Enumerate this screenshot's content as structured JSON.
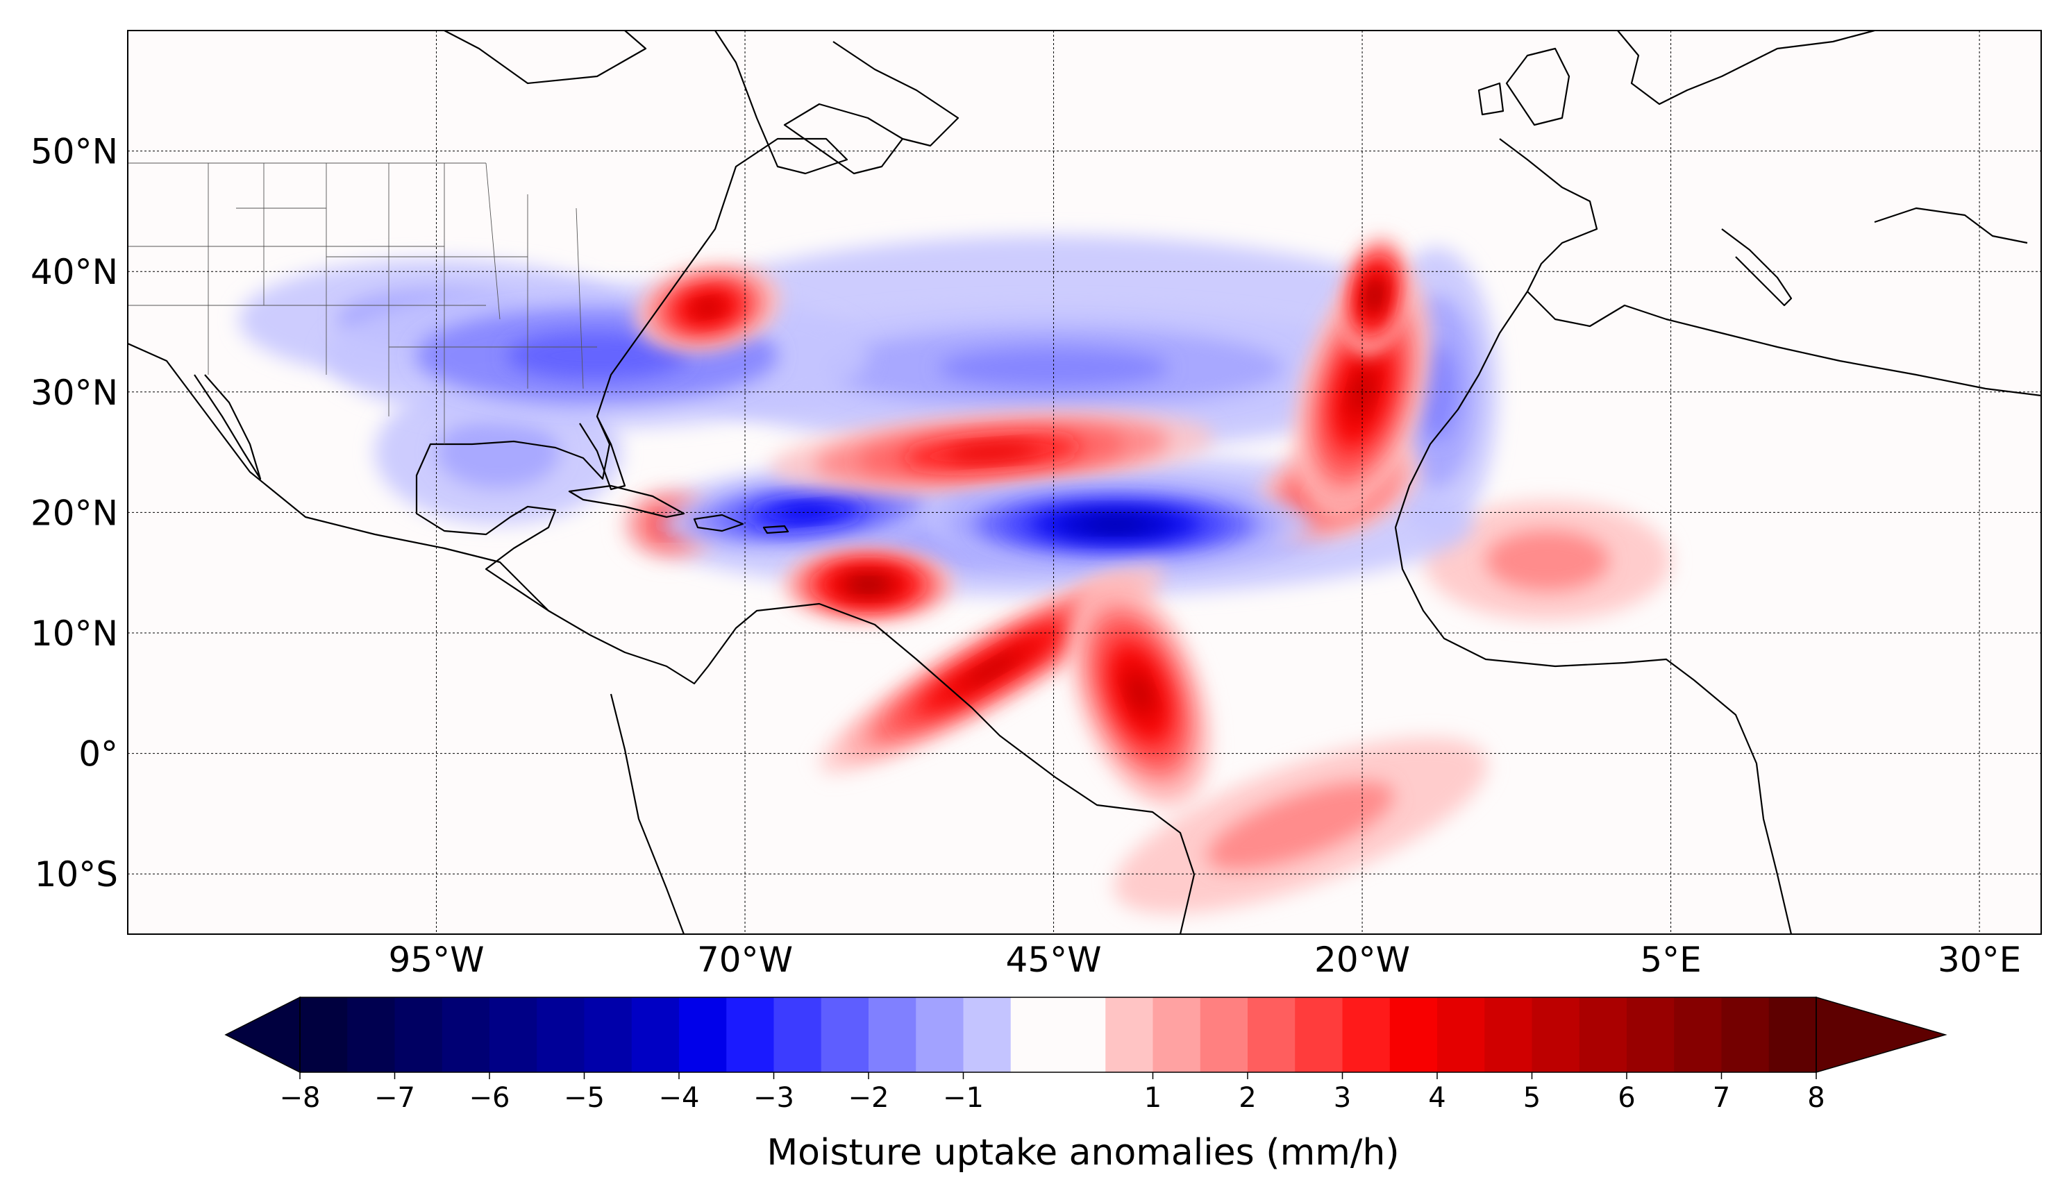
{
  "figure": {
    "colorbar_label": "Moisture uptake anomalies (mm/h)"
  },
  "map": {
    "projection": "PlateCarree",
    "lon_range": [
      -120,
      35
    ],
    "lat_range": [
      -15,
      60
    ],
    "lon_ticks": [
      {
        "value": -95,
        "label": "95°W"
      },
      {
        "value": -70,
        "label": "70°W"
      },
      {
        "value": -45,
        "label": "45°W"
      },
      {
        "value": -20,
        "label": "20°W"
      },
      {
        "value": 5,
        "label": "5°E"
      },
      {
        "value": 30,
        "label": "30°E"
      }
    ],
    "lat_ticks": [
      {
        "value": 50,
        "label": "50°N"
      },
      {
        "value": 40,
        "label": "40°N"
      },
      {
        "value": 30,
        "label": "30°N"
      },
      {
        "value": 20,
        "label": "20°N"
      },
      {
        "value": 10,
        "label": "10°N"
      },
      {
        "value": 0,
        "label": "0°"
      },
      {
        "value": -10,
        "label": "10°S"
      }
    ],
    "gridlines": true
  },
  "chart_data": {
    "type": "heatmap",
    "title": "",
    "colorbar_label": "Moisture uptake anomalies (mm/h)",
    "units": "mm/h",
    "vmin": -8,
    "vmax": 8,
    "level_step": 0.5,
    "extend": "both",
    "colorbar_ticks": [
      {
        "value": -8,
        "label": "−8"
      },
      {
        "value": -7,
        "label": "−7"
      },
      {
        "value": -6,
        "label": "−6"
      },
      {
        "value": -5,
        "label": "−5"
      },
      {
        "value": -4,
        "label": "−4"
      },
      {
        "value": -3,
        "label": "−3"
      },
      {
        "value": -2,
        "label": "−2"
      },
      {
        "value": -1,
        "label": "−1"
      },
      {
        "value": 1,
        "label": "1"
      },
      {
        "value": 2,
        "label": "2"
      },
      {
        "value": 3,
        "label": "3"
      },
      {
        "value": 4,
        "label": "4"
      },
      {
        "value": 5,
        "label": "5"
      },
      {
        "value": 6,
        "label": "6"
      },
      {
        "value": 7,
        "label": "7"
      },
      {
        "value": 8,
        "label": "8"
      }
    ],
    "levels": [
      {
        "range": [
          -8,
          -7.5
        ],
        "color": "#00003f"
      },
      {
        "range": [
          -7.5,
          -7
        ],
        "color": "#000050"
      },
      {
        "range": [
          -7,
          -6.5
        ],
        "color": "#000062"
      },
      {
        "range": [
          -6.5,
          -6
        ],
        "color": "#000074"
      },
      {
        "range": [
          -6,
          -5.5
        ],
        "color": "#000086"
      },
      {
        "range": [
          -5.5,
          -5
        ],
        "color": "#000098"
      },
      {
        "range": [
          -5,
          -4.5
        ],
        "color": "#0000aa"
      },
      {
        "range": [
          -4.5,
          -4
        ],
        "color": "#0000c4"
      },
      {
        "range": [
          -4,
          -3.5
        ],
        "color": "#0000ea"
      },
      {
        "range": [
          -3.5,
          -3
        ],
        "color": "#1a1aff"
      },
      {
        "range": [
          -3,
          -2.5
        ],
        "color": "#3c3cff"
      },
      {
        "range": [
          -2.5,
          -2
        ],
        "color": "#5e5eff"
      },
      {
        "range": [
          -2,
          -1.5
        ],
        "color": "#8080ff"
      },
      {
        "range": [
          -1.5,
          -1
        ],
        "color": "#a2a2ff"
      },
      {
        "range": [
          -1,
          -0.5
        ],
        "color": "#c4c4ff"
      },
      {
        "range": [
          -0.5,
          0.5
        ],
        "color": "#fefbfb"
      },
      {
        "range": [
          0.5,
          1
        ],
        "color": "#ffc4c4"
      },
      {
        "range": [
          1,
          1.5
        ],
        "color": "#ffa2a2"
      },
      {
        "range": [
          1.5,
          2
        ],
        "color": "#ff8080"
      },
      {
        "range": [
          2,
          2.5
        ],
        "color": "#ff5e5e"
      },
      {
        "range": [
          2.5,
          3
        ],
        "color": "#ff3c3c"
      },
      {
        "range": [
          3,
          3.5
        ],
        "color": "#ff1a1a"
      },
      {
        "range": [
          3.5,
          4
        ],
        "color": "#f80000"
      },
      {
        "range": [
          4,
          4.5
        ],
        "color": "#e40000"
      },
      {
        "range": [
          4.5,
          5
        ],
        "color": "#d00000"
      },
      {
        "range": [
          5,
          5.5
        ],
        "color": "#bd0000"
      },
      {
        "range": [
          5.5,
          6
        ],
        "color": "#aa0000"
      },
      {
        "range": [
          6,
          6.5
        ],
        "color": "#980000"
      },
      {
        "range": [
          6.5,
          7
        ],
        "color": "#860000"
      },
      {
        "range": [
          7,
          7.5
        ],
        "color": "#740000"
      },
      {
        "range": [
          7.5,
          8
        ],
        "color": "#5e0000"
      }
    ],
    "features": [
      {
        "id": "us-southeast-deficit",
        "center": [
          -82,
          33
        ],
        "extent_deg": [
          22,
          6
        ],
        "rotation": 0,
        "value": -2.5
      },
      {
        "id": "us-central-deficit",
        "center": [
          -95,
          36
        ],
        "extent_deg": [
          16,
          5
        ],
        "rotation": 0,
        "value": -1.5
      },
      {
        "id": "gulf-of-mexico-deficit",
        "center": [
          -90,
          25
        ],
        "extent_deg": [
          10,
          6
        ],
        "rotation": 0,
        "value": -1.5
      },
      {
        "id": "subtropical-atlantic-deficit",
        "center": [
          -45,
          32
        ],
        "extent_deg": [
          28,
          5
        ],
        "rotation": 0,
        "value": -2
      },
      {
        "id": "subtropical-atlantic-outer",
        "center": [
          -45,
          34
        ],
        "extent_deg": [
          34,
          9
        ],
        "rotation": 0,
        "value": -1
      },
      {
        "id": "tropical-atlantic-deficit-core",
        "center": [
          -40,
          19
        ],
        "extent_deg": [
          16,
          3.5
        ],
        "rotation": 0,
        "value": -5
      },
      {
        "id": "caribbean-deficit",
        "center": [
          -65,
          20
        ],
        "extent_deg": [
          12,
          3
        ],
        "rotation": -5,
        "value": -4
      },
      {
        "id": "tropical-atlantic-deficit-outer",
        "center": [
          -45,
          19
        ],
        "extent_deg": [
          34,
          6
        ],
        "rotation": 0,
        "value": -2
      },
      {
        "id": "canary-coast-deficit",
        "center": [
          -14,
          30
        ],
        "extent_deg": [
          5,
          12
        ],
        "rotation": 0,
        "value": -2
      },
      {
        "id": "us-east-coast-surplus",
        "center": [
          -73,
          37
        ],
        "extent_deg": [
          6,
          3.5
        ],
        "rotation": -10,
        "value": 5
      },
      {
        "id": "subtropical-surplus-band",
        "center": [
          -50,
          25
        ],
        "extent_deg": [
          18,
          3.2
        ],
        "rotation": -4,
        "value": 4
      },
      {
        "id": "east-atlantic-surplus",
        "center": [
          -20,
          30
        ],
        "extent_deg": [
          5,
          11
        ],
        "rotation": 15,
        "value": 5
      },
      {
        "id": "azores-surplus-core",
        "center": [
          -19,
          38
        ],
        "extent_deg": [
          2.5,
          5
        ],
        "rotation": 10,
        "value": 6
      },
      {
        "id": "canary-surplus",
        "center": [
          -22,
          22
        ],
        "extent_deg": [
          7,
          4
        ],
        "rotation": -20,
        "value": 4
      },
      {
        "id": "caribbean-surplus",
        "center": [
          -60,
          14
        ],
        "extent_deg": [
          7,
          3
        ],
        "rotation": 0,
        "value": 6
      },
      {
        "id": "amazon-coast-surplus",
        "center": [
          -50,
          7
        ],
        "extent_deg": [
          16,
          3
        ],
        "rotation": -30,
        "value": 5
      },
      {
        "id": "equatorial-atlantic-surplus",
        "center": [
          -38,
          5
        ],
        "extent_deg": [
          5,
          10
        ],
        "rotation": -20,
        "value": 5
      },
      {
        "id": "south-atlantic-surplus",
        "center": [
          -25,
          -6
        ],
        "extent_deg": [
          16,
          5
        ],
        "rotation": -20,
        "value": 1.5
      },
      {
        "id": "west-africa-surplus",
        "center": [
          -5,
          16
        ],
        "extent_deg": [
          10,
          5
        ],
        "rotation": 0,
        "value": 1.5
      },
      {
        "id": "hispaniola-surplus",
        "center": [
          -76,
          19
        ],
        "extent_deg": [
          4,
          3
        ],
        "rotation": 0,
        "value": 3
      }
    ]
  }
}
